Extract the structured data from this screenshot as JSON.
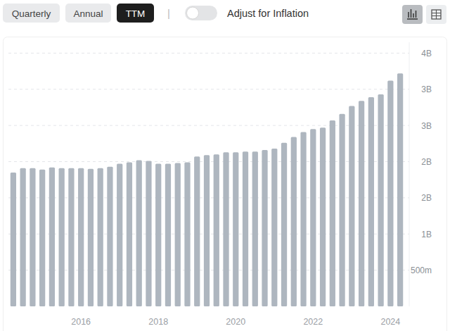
{
  "controls": {
    "buttons": [
      "Quarterly",
      "Annual",
      "TTM"
    ],
    "active": "TTM",
    "separator": "|",
    "toggle_label": "Adjust for Inflation"
  },
  "chart_data": {
    "type": "bar",
    "categories": [
      null,
      null,
      null,
      null,
      null,
      null,
      null,
      "2016",
      null,
      null,
      null,
      null,
      null,
      null,
      null,
      "2018",
      null,
      null,
      null,
      null,
      null,
      null,
      null,
      "2020",
      null,
      null,
      null,
      null,
      null,
      null,
      null,
      "2022",
      null,
      null,
      null,
      null,
      null,
      null,
      null,
      "2024",
      null
    ],
    "values": [
      1.85,
      1.91,
      1.91,
      1.89,
      1.92,
      1.91,
      1.91,
      1.91,
      1.9,
      1.91,
      1.93,
      1.97,
      1.99,
      2.02,
      2.01,
      1.97,
      1.97,
      1.98,
      1.99,
      2.07,
      2.09,
      2.1,
      2.13,
      2.13,
      2.14,
      2.14,
      2.16,
      2.18,
      2.26,
      2.34,
      2.41,
      2.45,
      2.47,
      2.57,
      2.66,
      2.77,
      2.84,
      2.89,
      2.93,
      3.12,
      3.22
    ],
    "color": "#aeb6bf",
    "ylim": [
      0,
      3.65
    ],
    "yticks": [
      {
        "value": 0.5,
        "label": "500m"
      },
      {
        "value": 1,
        "label": "1B"
      },
      {
        "value": 1.5,
        "label": "2B"
      },
      {
        "value": 2,
        "label": "2B"
      },
      {
        "value": 2.5,
        "label": "3B"
      },
      {
        "value": 3,
        "label": "3B"
      },
      {
        "value": 3.5,
        "label": "4B"
      }
    ],
    "grid": true
  }
}
